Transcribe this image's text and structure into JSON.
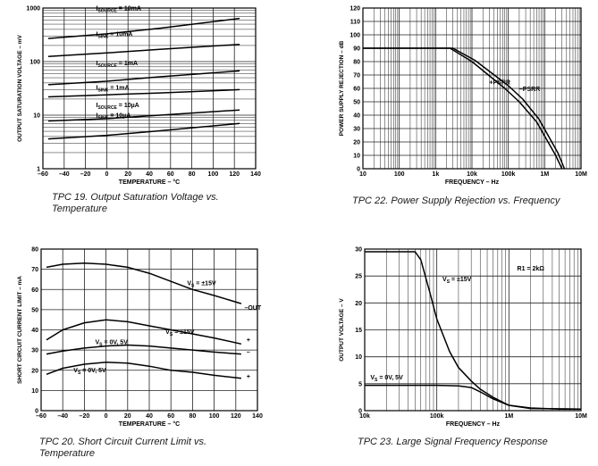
{
  "chart_data": [
    {
      "type": "line",
      "caption": "TPC 19.  Output Saturation Voltage vs.\nTemperature",
      "xlabel": "TEMPERATURE – °C",
      "ylabel": "OUTPUT SATURATION VOLTAGE – mV",
      "xlim": [
        -60,
        140
      ],
      "ylim": [
        1,
        1000
      ],
      "yscale": "log",
      "grid": true,
      "xticks": [
        -60,
        -40,
        -20,
        0,
        20,
        40,
        60,
        80,
        100,
        120,
        140
      ],
      "xtick_labels": [
        "–60",
        "–40",
        "–20",
        "0",
        "20",
        "40",
        "60",
        "80",
        "100",
        "120",
        "140"
      ],
      "yticks": [
        1,
        10,
        100,
        1000
      ],
      "ytick_labels": [
        "1",
        "10",
        "100",
        "1000"
      ],
      "series": [
        {
          "name": "ISOURCE = 10mA",
          "x": [
            -55,
            0,
            50,
            125
          ],
          "values": [
            270,
            330,
            420,
            640
          ]
        },
        {
          "name": "ISINK = 10mA",
          "x": [
            -55,
            0,
            50,
            125
          ],
          "values": [
            125,
            145,
            170,
            210
          ]
        },
        {
          "name": "ISOURCE = 1mA",
          "x": [
            -55,
            0,
            50,
            125
          ],
          "values": [
            37,
            43,
            52,
            67
          ]
        },
        {
          "name": "ISINK = 1mA",
          "x": [
            -55,
            0,
            50,
            125
          ],
          "values": [
            22,
            24,
            26,
            30
          ]
        },
        {
          "name": "ISOURCE = 10µA",
          "x": [
            -55,
            0,
            50,
            125
          ],
          "values": [
            7.8,
            8.6,
            10,
            12.5
          ]
        },
        {
          "name": "ISINK = 10µA",
          "x": [
            -55,
            0,
            50,
            125
          ],
          "values": [
            3.6,
            4.2,
            5.1,
            7
          ]
        }
      ],
      "annotations": [
        {
          "sub": "SOURCE",
          "rest": " = 10mA",
          "x": -10,
          "y": 900
        },
        {
          "sub": "SINK",
          "rest": " = 10mA",
          "x": -10,
          "y": 300
        },
        {
          "sub": "SOURCE",
          "rest": " = 1mA",
          "x": -10,
          "y": 85
        },
        {
          "sub": "SINK",
          "rest": " = 1mA",
          "x": -10,
          "y": 30
        },
        {
          "sub": "SOURCE",
          "rest": " = 10µA",
          "x": -10,
          "y": 14
        },
        {
          "sub": "SINK",
          "rest": " = 10µA",
          "x": -10,
          "y": 9
        }
      ]
    },
    {
      "type": "line",
      "caption": "TPC 22.  Power Supply Rejection vs. Frequency",
      "xlabel": "FREQUENCY – Hz",
      "ylabel": "POWER SUPPLY REJECTION – dB",
      "xlim": [
        10,
        10000000
      ],
      "ylim": [
        0,
        120
      ],
      "xscale": "log",
      "grid": true,
      "xticks": [
        10,
        100,
        1000,
        10000,
        100000,
        1000000,
        10000000
      ],
      "xtick_labels": [
        "10",
        "100",
        "1k",
        "10k",
        "100k",
        "1M",
        "10M"
      ],
      "yticks": [
        0,
        10,
        20,
        30,
        40,
        50,
        60,
        70,
        80,
        90,
        100,
        110,
        120
      ],
      "ytick_labels": [
        "0",
        "10",
        "20",
        "30",
        "40",
        "50",
        "60",
        "70",
        "80",
        "90",
        "100",
        "110",
        "120"
      ],
      "series": [
        {
          "name": "+PSRR",
          "x": [
            10,
            2500,
            10000,
            80000,
            200000,
            600000,
            2000000,
            3000000
          ],
          "values": [
            90,
            90,
            80,
            60,
            50,
            35,
            10,
            0
          ]
        },
        {
          "name": "–PSRR",
          "x": [
            10,
            3000,
            12000,
            100000,
            250000,
            700000,
            2300000,
            3500000
          ],
          "values": [
            90,
            90,
            81,
            62,
            52,
            37,
            12,
            0
          ]
        }
      ],
      "annotations": [
        {
          "text": "+PSRR",
          "x": 30000,
          "y": 63
        },
        {
          "text": "–PSRR",
          "x": 200000,
          "y": 58
        }
      ]
    },
    {
      "type": "line",
      "caption": "TPC 20.  Short Circuit Current Limit vs.\nTemperature",
      "xlabel": "TEMPERATURE – °C",
      "ylabel": "SHORT CIRCUIT CURRENT LIMIT – mA",
      "xlim": [
        -60,
        140
      ],
      "ylim": [
        0,
        80
      ],
      "grid": true,
      "xticks": [
        -60,
        -40,
        -20,
        0,
        20,
        40,
        60,
        80,
        100,
        120,
        140
      ],
      "xtick_labels": [
        "–60",
        "–40",
        "–20",
        "0",
        "20",
        "40",
        "60",
        "80",
        "100",
        "120",
        "140"
      ],
      "yticks": [
        0,
        10,
        20,
        30,
        40,
        50,
        60,
        70,
        80
      ],
      "ytick_labels": [
        "0",
        "10",
        "20",
        "30",
        "40",
        "50",
        "60",
        "70",
        "80"
      ],
      "series": [
        {
          "name": "VS = ±15V –OUT",
          "x": [
            -55,
            -40,
            -20,
            0,
            20,
            40,
            60,
            80,
            100,
            125
          ],
          "values": [
            71,
            72.5,
            73,
            72.5,
            71,
            68,
            64,
            60,
            57,
            53
          ]
        },
        {
          "name": "VS = ±15V +",
          "x": [
            -55,
            -40,
            -20,
            0,
            20,
            40,
            60,
            80,
            100,
            125
          ],
          "values": [
            35,
            40,
            43.5,
            45,
            44,
            42,
            40,
            38,
            36,
            33
          ]
        },
        {
          "name": "VS = 0V, 5V –",
          "x": [
            -55,
            -40,
            -20,
            0,
            20,
            40,
            60,
            80,
            100,
            125
          ],
          "values": [
            28,
            29.5,
            31,
            32,
            32.5,
            32,
            31,
            30,
            29,
            28
          ]
        },
        {
          "name": "VS = 0V, 5V +",
          "x": [
            -55,
            -40,
            -20,
            0,
            20,
            40,
            60,
            80,
            100,
            125
          ],
          "values": [
            18,
            21,
            23,
            24,
            23.5,
            22,
            20,
            19,
            17.5,
            16
          ]
        }
      ],
      "annotations": [
        {
          "vs": "V",
          "sub": "S",
          "rest": " = ±15V",
          "x": 75,
          "y": 62
        },
        {
          "vs": "V",
          "sub": "S",
          "rest": " = ±15V",
          "x": 55,
          "y": 38
        },
        {
          "vs": "V",
          "sub": "S",
          "rest": " = 0V, 5V",
          "x": -10,
          "y": 33
        },
        {
          "vs": "V",
          "sub": "S",
          "rest": " = 0V, 5V",
          "x": -30,
          "y": 19
        },
        {
          "text": "–OUT",
          "x": 128,
          "y": 50
        },
        {
          "text": "+",
          "x": 130,
          "y": 34
        },
        {
          "text": "–",
          "x": 130,
          "y": 28
        },
        {
          "text": "+",
          "x": 130,
          "y": 16
        }
      ]
    },
    {
      "type": "line",
      "caption": "TPC 23.  Large Signal Frequency Response",
      "xlabel": "FREQUENCY – Hz",
      "ylabel": "OUTPUT VOLTAGE – V",
      "xlim": [
        10000,
        10000000
      ],
      "ylim": [
        0,
        30
      ],
      "xscale": "log",
      "grid": true,
      "xticks": [
        10000,
        100000,
        1000000,
        10000000
      ],
      "xtick_labels": [
        "10k",
        "100k",
        "1M",
        "10M"
      ],
      "yticks": [
        0,
        5,
        10,
        15,
        20,
        25,
        30
      ],
      "ytick_labels": [
        "0",
        "5",
        "10",
        "15",
        "20",
        "25",
        "30"
      ],
      "series": [
        {
          "name": "VS = ±15V",
          "x": [
            10000,
            50000,
            60000,
            80000,
            100000,
            150000,
            200000,
            300000,
            400000,
            600000,
            1000000,
            2000000,
            5000000,
            10000000
          ],
          "values": [
            29.5,
            29.5,
            28,
            22,
            17,
            11,
            8,
            5.5,
            4,
            2.5,
            1,
            0.5,
            0.3,
            0.3
          ]
        },
        {
          "name": "VS = 0V, 5V",
          "x": [
            10000,
            100000,
            200000,
            300000,
            400000,
            600000,
            1000000,
            2000000,
            10000000
          ],
          "values": [
            4.7,
            4.7,
            4.6,
            4.3,
            3.5,
            2.2,
            1,
            0.4,
            0.3
          ]
        }
      ],
      "annotations": [
        {
          "vs": "V",
          "sub": "S",
          "rest": " = ±15V",
          "x": 120000,
          "y": 24
        },
        {
          "vs": "V",
          "sub": "S",
          "rest": " = 0V, 5V",
          "x": 12000,
          "y": 5.8
        },
        {
          "text": "R1 = 2kΩ",
          "x": 1300000,
          "y": 26
        }
      ]
    }
  ]
}
